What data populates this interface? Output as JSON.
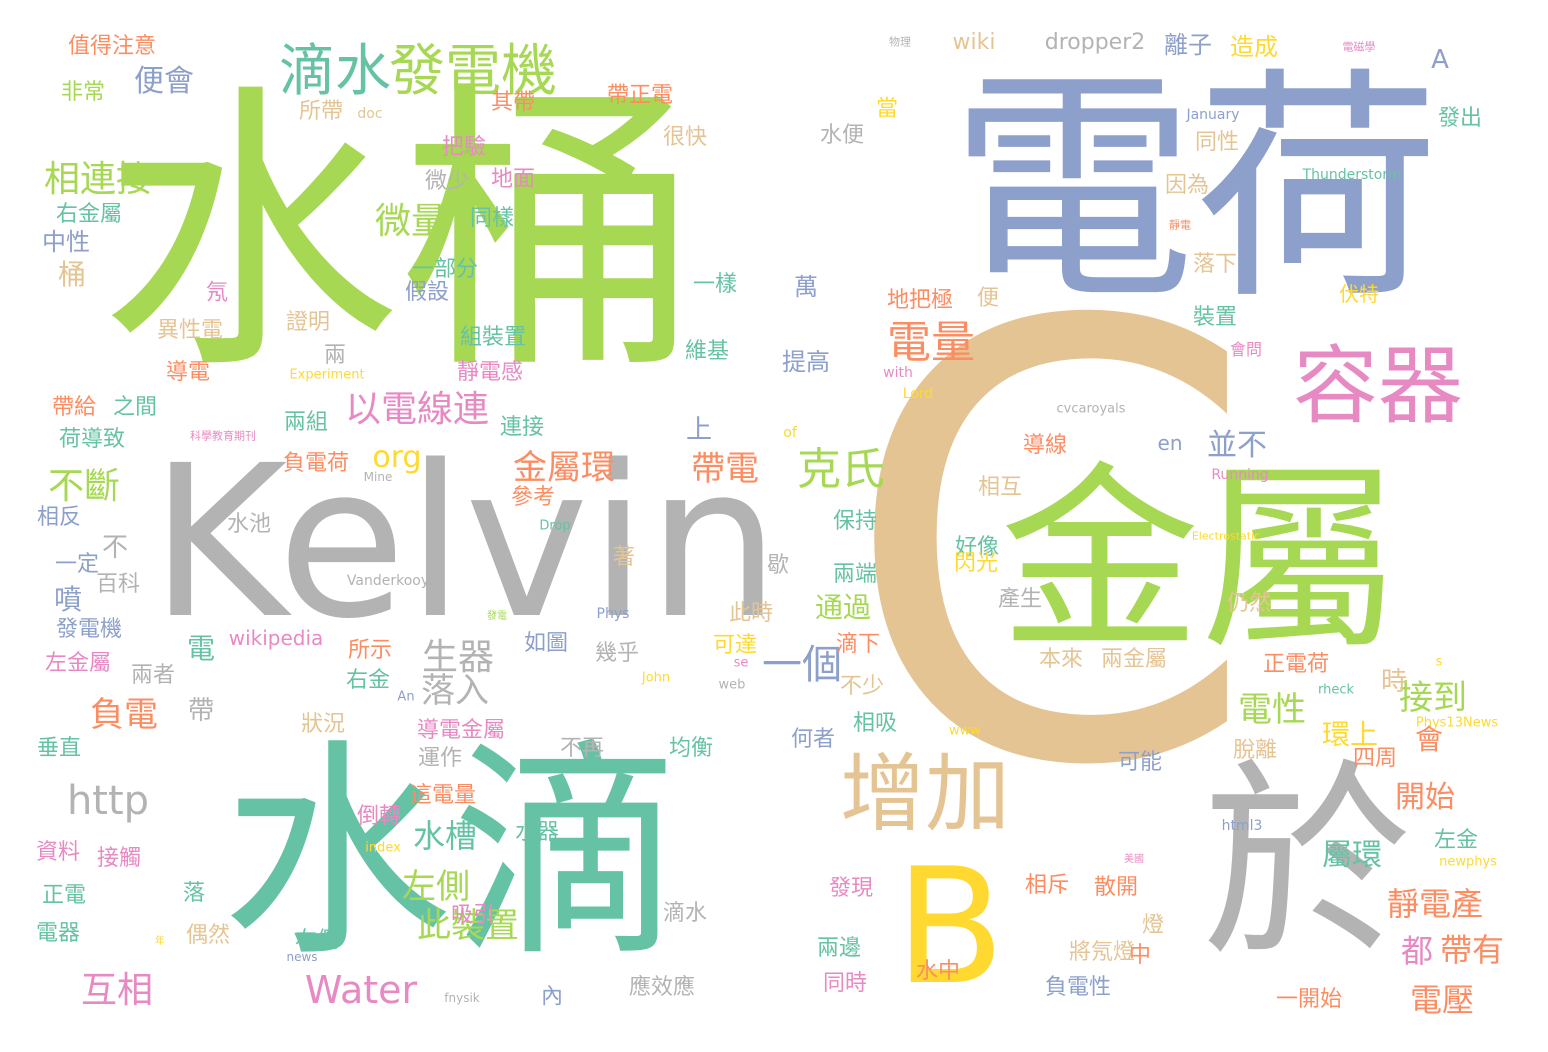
{
  "palette": {
    "green": "#a6d854",
    "teal": "#66c2a5",
    "blue": "#8da0cb",
    "tan": "#e5c494",
    "gray": "#b3b3b3",
    "orange": "#fc8d62",
    "pink": "#e78ac3",
    "yellow": "#ffd92f"
  },
  "words": [
    {
      "text": "水桶",
      "color": "green"
    },
    {
      "text": "電荷",
      "color": "blue"
    },
    {
      "text": "C",
      "color": "tan"
    },
    {
      "text": "Kelvin",
      "color": "gray"
    },
    {
      "text": "水滴",
      "color": "teal"
    },
    {
      "text": "金屬",
      "color": "green"
    },
    {
      "text": "於",
      "color": "gray"
    },
    {
      "text": "B",
      "color": "yellow"
    },
    {
      "text": "容器",
      "color": "pink"
    },
    {
      "text": "增加",
      "color": "tan"
    },
    {
      "text": "發電機",
      "color": "green"
    },
    {
      "text": "滴水",
      "color": "teal"
    },
    {
      "text": "克氏",
      "color": "green"
    },
    {
      "text": "電量",
      "color": "orange"
    },
    {
      "text": "相連接",
      "color": "green"
    },
    {
      "text": "微量",
      "color": "green"
    },
    {
      "text": "不斷",
      "color": "green"
    },
    {
      "text": "以電線連",
      "color": "pink"
    },
    {
      "text": "一個",
      "color": "blue"
    },
    {
      "text": "金屬環",
      "color": "orange"
    },
    {
      "text": "帶電",
      "color": "orange"
    },
    {
      "text": "Water",
      "color": "pink"
    },
    {
      "text": "http",
      "color": "gray"
    },
    {
      "text": "負電",
      "color": "orange"
    },
    {
      "text": "生器",
      "color": "gray"
    },
    {
      "text": "落入",
      "color": "gray"
    },
    {
      "text": "此裝置",
      "color": "green"
    },
    {
      "text": "左側",
      "color": "green"
    },
    {
      "text": "水槽",
      "color": "teal"
    },
    {
      "text": "互相",
      "color": "pink"
    },
    {
      "text": "接到",
      "color": "green"
    },
    {
      "text": "電性",
      "color": "green"
    },
    {
      "text": "環上",
      "color": "yellow"
    },
    {
      "text": "開始",
      "color": "orange"
    },
    {
      "text": "屬環",
      "color": "teal"
    },
    {
      "text": "靜電產",
      "color": "orange"
    },
    {
      "text": "都",
      "color": "pink"
    },
    {
      "text": "帶有",
      "color": "orange"
    },
    {
      "text": "電壓",
      "color": "orange"
    },
    {
      "text": "便會",
      "color": "blue"
    },
    {
      "text": "值得注意",
      "color": "orange"
    },
    {
      "text": "非常",
      "color": "green"
    },
    {
      "text": "wiki",
      "color": "tan"
    },
    {
      "text": "dropper2",
      "color": "gray"
    },
    {
      "text": "離子",
      "color": "blue"
    },
    {
      "text": "造成",
      "color": "yellow"
    },
    {
      "text": "A",
      "color": "blue"
    },
    {
      "text": "帶正電",
      "color": "orange"
    },
    {
      "text": "其帶",
      "color": "orange"
    },
    {
      "text": "所帶",
      "color": "tan"
    },
    {
      "text": "doc",
      "color": "tan"
    },
    {
      "text": "水便",
      "color": "gray"
    },
    {
      "text": "很快",
      "color": "tan"
    },
    {
      "text": "把驗",
      "color": "pink"
    },
    {
      "text": "當",
      "color": "yellow"
    },
    {
      "text": "January",
      "color": "blue"
    },
    {
      "text": "發出",
      "color": "teal"
    },
    {
      "text": "同性",
      "color": "tan"
    },
    {
      "text": "右金屬",
      "color": "teal"
    },
    {
      "text": "中性",
      "color": "blue"
    },
    {
      "text": "桶",
      "color": "tan"
    },
    {
      "text": "微少",
      "color": "gray"
    },
    {
      "text": "地面",
      "color": "pink"
    },
    {
      "text": "同樣",
      "color": "teal"
    },
    {
      "text": "因為",
      "color": "tan"
    },
    {
      "text": "Thunderstorm",
      "color": "teal"
    },
    {
      "text": "一部分",
      "color": "teal"
    },
    {
      "text": "假設",
      "color": "blue"
    },
    {
      "text": "一樣",
      "color": "teal"
    },
    {
      "text": "萬",
      "color": "blue"
    },
    {
      "text": "落下",
      "color": "tan"
    },
    {
      "text": "伏特",
      "color": "yellow"
    },
    {
      "text": "地把極",
      "color": "orange"
    },
    {
      "text": "便",
      "color": "tan"
    },
    {
      "text": "裝置",
      "color": "teal"
    },
    {
      "text": "證明",
      "color": "tan"
    },
    {
      "text": "異性電",
      "color": "tan"
    },
    {
      "text": "導電",
      "color": "orange"
    },
    {
      "text": "組裝置",
      "color": "teal"
    },
    {
      "text": "維基",
      "color": "teal"
    },
    {
      "text": "提高",
      "color": "blue"
    },
    {
      "text": "兩",
      "color": "gray"
    },
    {
      "text": "靜電感",
      "color": "pink"
    },
    {
      "text": "Experiment",
      "color": "yellow"
    },
    {
      "text": "with",
      "color": "pink"
    },
    {
      "text": "Lord",
      "color": "yellow"
    },
    {
      "text": "會問",
      "color": "pink"
    },
    {
      "text": "帶給",
      "color": "orange"
    },
    {
      "text": "之間",
      "color": "teal"
    },
    {
      "text": "兩組",
      "color": "teal"
    },
    {
      "text": "連接",
      "color": "teal"
    },
    {
      "text": "荷導致",
      "color": "teal"
    },
    {
      "text": "上",
      "color": "blue"
    },
    {
      "text": "of",
      "color": "yellow"
    },
    {
      "text": "cvcaroyals",
      "color": "gray"
    },
    {
      "text": "並不",
      "color": "blue"
    },
    {
      "text": "en",
      "color": "blue"
    },
    {
      "text": "導線",
      "color": "orange"
    },
    {
      "text": "負電荷",
      "color": "orange"
    },
    {
      "text": "org",
      "color": "yellow"
    },
    {
      "text": "參考",
      "color": "orange"
    },
    {
      "text": "Mine",
      "color": "gray"
    },
    {
      "text": "Running",
      "color": "pink"
    },
    {
      "text": "相互",
      "color": "tan"
    },
    {
      "text": "相反",
      "color": "blue"
    },
    {
      "text": "水池",
      "color": "gray"
    },
    {
      "text": "Drop",
      "color": "teal"
    },
    {
      "text": "保持",
      "color": "teal"
    },
    {
      "text": "Electrostatic",
      "color": "yellow"
    },
    {
      "text": "好像",
      "color": "teal"
    },
    {
      "text": "一定",
      "color": "blue"
    },
    {
      "text": "不",
      "color": "gray"
    },
    {
      "text": "著",
      "color": "tan"
    },
    {
      "text": "歇",
      "color": "gray"
    },
    {
      "text": "兩端",
      "color": "teal"
    },
    {
      "text": "閃光",
      "color": "yellow"
    },
    {
      "text": "百科",
      "color": "gray"
    },
    {
      "text": "噴",
      "color": "blue"
    },
    {
      "text": "Vanderkooy",
      "color": "gray"
    },
    {
      "text": "產生",
      "color": "gray"
    },
    {
      "text": "仍然",
      "color": "tan"
    },
    {
      "text": "通過",
      "color": "green"
    },
    {
      "text": "此時",
      "color": "tan"
    },
    {
      "text": "Phys",
      "color": "blue"
    },
    {
      "text": "發電機",
      "color": "blue"
    },
    {
      "text": "wikipedia",
      "color": "pink"
    },
    {
      "text": "如圖",
      "color": "blue"
    },
    {
      "text": "可達",
      "color": "yellow"
    },
    {
      "text": "滴下",
      "color": "orange"
    },
    {
      "text": "電",
      "color": "teal"
    },
    {
      "text": "所示",
      "color": "orange"
    },
    {
      "text": "幾乎",
      "color": "gray"
    },
    {
      "text": "本來",
      "color": "tan"
    },
    {
      "text": "兩金屬",
      "color": "tan"
    },
    {
      "text": "左金屬",
      "color": "pink"
    },
    {
      "text": "兩者",
      "color": "gray"
    },
    {
      "text": "右金",
      "color": "teal"
    },
    {
      "text": "An",
      "color": "blue"
    },
    {
      "text": "John",
      "color": "yellow"
    },
    {
      "text": "web",
      "color": "gray"
    },
    {
      "text": "se",
      "color": "pink"
    },
    {
      "text": "正電荷",
      "color": "orange"
    },
    {
      "text": "s",
      "color": "yellow"
    },
    {
      "text": "rheck",
      "color": "teal"
    },
    {
      "text": "Phys13News",
      "color": "yellow"
    },
    {
      "text": "帶",
      "color": "gray"
    },
    {
      "text": "不少",
      "color": "tan"
    },
    {
      "text": "時",
      "color": "tan"
    },
    {
      "text": "會",
      "color": "orange"
    },
    {
      "text": "垂直",
      "color": "teal"
    },
    {
      "text": "狀況",
      "color": "tan"
    },
    {
      "text": "相吸",
      "color": "teal"
    },
    {
      "text": "導電金屬",
      "color": "pink"
    },
    {
      "text": "何者",
      "color": "blue"
    },
    {
      "text": "www",
      "color": "yellow"
    },
    {
      "text": "運作",
      "color": "gray"
    },
    {
      "text": "不再",
      "color": "gray"
    },
    {
      "text": "均衡",
      "color": "teal"
    },
    {
      "text": "可能",
      "color": "blue"
    },
    {
      "text": "四周",
      "color": "orange"
    },
    {
      "text": "脫離",
      "color": "tan"
    },
    {
      "text": "這電量",
      "color": "orange"
    },
    {
      "text": "資料",
      "color": "pink"
    },
    {
      "text": "接觸",
      "color": "pink"
    },
    {
      "text": "倒轉",
      "color": "pink"
    },
    {
      "text": "index",
      "color": "yellow"
    },
    {
      "text": "水器",
      "color": "teal"
    },
    {
      "text": "html3",
      "color": "blue"
    },
    {
      "text": "左金",
      "color": "teal"
    },
    {
      "text": "newphys",
      "color": "yellow"
    },
    {
      "text": "正電",
      "color": "teal"
    },
    {
      "text": "落",
      "color": "teal"
    },
    {
      "text": "發現",
      "color": "pink"
    },
    {
      "text": "相斥",
      "color": "orange"
    },
    {
      "text": "散開",
      "color": "orange"
    },
    {
      "text": "燈",
      "color": "tan"
    },
    {
      "text": "吸引",
      "color": "pink"
    },
    {
      "text": "電器",
      "color": "teal"
    },
    {
      "text": "偶然",
      "color": "tan"
    },
    {
      "text": "右側",
      "color": "teal"
    },
    {
      "text": "將氖燈",
      "color": "tan"
    },
    {
      "text": "滴水",
      "color": "gray"
    },
    {
      "text": "兩邊",
      "color": "teal"
    },
    {
      "text": "中",
      "color": "orange"
    },
    {
      "text": "水中",
      "color": "orange"
    },
    {
      "text": "news",
      "color": "blue"
    },
    {
      "text": "同時",
      "color": "pink"
    },
    {
      "text": "負電性",
      "color": "blue"
    },
    {
      "text": "內",
      "color": "blue"
    },
    {
      "text": "應效應",
      "color": "gray"
    },
    {
      "text": "fnysik",
      "color": "gray"
    },
    {
      "text": "一開始",
      "color": "orange"
    },
    {
      "text": "氖",
      "color": "pink"
    },
    {
      "text": "科學教育期刊",
      "color": "pink"
    },
    {
      "text": "靜電",
      "color": "orange"
    },
    {
      "text": "發電",
      "color": "green"
    },
    {
      "text": "美國",
      "color": "pink"
    },
    {
      "text": "年",
      "color": "yellow"
    },
    {
      "text": "物理",
      "color": "gray"
    },
    {
      "text": "電磁學",
      "color": "pink"
    }
  ]
}
